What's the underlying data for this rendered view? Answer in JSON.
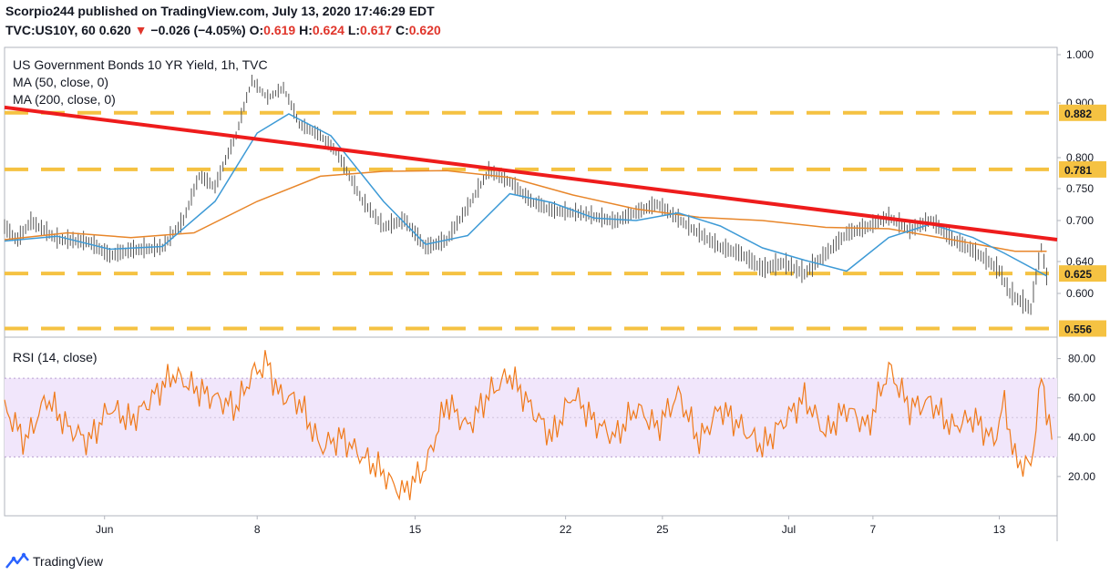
{
  "header": {
    "publisher_line": "Scorpio244 published on TradingView.com, July 13, 2020 17:46:29 EDT",
    "symbol": "TVC:US10Y, 60",
    "last": "0.620",
    "arrow": "▼",
    "change": "−0.026 (−4.05%)",
    "o_label": "O:",
    "o": "0.619",
    "h_label": "H:",
    "h": "0.624",
    "l_label": "L:",
    "l": "0.617",
    "c_label": "C:",
    "c": "0.620"
  },
  "legend": {
    "title": "US Government Bonds 10 YR Yield, 1h, TVC",
    "ma50": "MA (50, close, 0)",
    "ma200": "MA (200, close, 0)",
    "rsi": "RSI (14, close)"
  },
  "brand": "TradingView",
  "colors": {
    "trendline": "#ee1c1c",
    "levels": "#f5c242",
    "ma50": "#3d9ad6",
    "ma200": "#e8862a",
    "rsi": "#f07a1a",
    "rsi_band": "#f1e6fb",
    "price_bars": "#555555"
  },
  "chart_data": [
    {
      "type": "line",
      "title": "US Government Bonds 10 YR Yield, 1h, TVC",
      "y_ticks": [
        "1.000",
        "0.900",
        "0.800",
        "0.750",
        "0.700",
        "0.640",
        "0.600"
      ],
      "level_labels": [
        "0.882",
        "0.781",
        "0.625",
        "0.556"
      ],
      "levels": [
        0.882,
        0.781,
        0.625,
        0.556
      ],
      "x_ticks": [
        "Jun",
        "8",
        "15",
        "22",
        "25",
        "Jul",
        "7",
        "13"
      ],
      "trendline": {
        "from": [
          0,
          0.892
        ],
        "to": [
          1,
          0.672
        ]
      },
      "series": [
        {
          "name": "US10Y",
          "x": [
            0,
            0.012,
            0.025,
            0.05,
            0.08,
            0.1,
            0.12,
            0.15,
            0.17,
            0.185,
            0.2,
            0.22,
            0.235,
            0.25,
            0.265,
            0.28,
            0.3,
            0.315,
            0.34,
            0.36,
            0.38,
            0.4,
            0.42,
            0.44,
            0.46,
            0.48,
            0.5,
            0.52,
            0.55,
            0.58,
            0.6,
            0.62,
            0.64,
            0.66,
            0.68,
            0.7,
            0.72,
            0.74,
            0.76,
            0.78,
            0.8,
            0.82,
            0.84,
            0.86,
            0.88,
            0.9,
            0.92,
            0.935,
            0.945,
            0.955,
            0.975,
            0.985,
            0.99
          ],
          "values": [
            0.69,
            0.67,
            0.698,
            0.672,
            0.668,
            0.648,
            0.656,
            0.66,
            0.7,
            0.77,
            0.752,
            0.84,
            0.945,
            0.91,
            0.93,
            0.86,
            0.84,
            0.81,
            0.73,
            0.69,
            0.7,
            0.66,
            0.67,
            0.72,
            0.778,
            0.76,
            0.73,
            0.715,
            0.71,
            0.698,
            0.712,
            0.725,
            0.702,
            0.68,
            0.66,
            0.65,
            0.63,
            0.638,
            0.624,
            0.65,
            0.68,
            0.69,
            0.705,
            0.685,
            0.7,
            0.672,
            0.655,
            0.64,
            0.628,
            0.6,
            0.58,
            0.66,
            0.62
          ]
        },
        {
          "name": "MA (50, close, 0)",
          "x": [
            0,
            0.05,
            0.1,
            0.15,
            0.2,
            0.24,
            0.27,
            0.31,
            0.36,
            0.4,
            0.44,
            0.48,
            0.52,
            0.56,
            0.6,
            0.64,
            0.68,
            0.72,
            0.76,
            0.8,
            0.84,
            0.88,
            0.92,
            0.95,
            0.99
          ],
          "values": [
            0.67,
            0.677,
            0.658,
            0.662,
            0.73,
            0.845,
            0.88,
            0.84,
            0.73,
            0.665,
            0.678,
            0.742,
            0.728,
            0.704,
            0.7,
            0.712,
            0.692,
            0.66,
            0.642,
            0.628,
            0.675,
            0.695,
            0.675,
            0.652,
            0.622
          ]
        },
        {
          "name": "MA (200, close, 0)",
          "x": [
            0,
            0.06,
            0.12,
            0.18,
            0.24,
            0.3,
            0.36,
            0.42,
            0.48,
            0.54,
            0.6,
            0.66,
            0.72,
            0.78,
            0.84,
            0.9,
            0.96,
            0.99
          ],
          "values": [
            0.672,
            0.682,
            0.675,
            0.682,
            0.73,
            0.77,
            0.778,
            0.779,
            0.768,
            0.74,
            0.718,
            0.705,
            0.7,
            0.69,
            0.688,
            0.672,
            0.655,
            0.655
          ]
        }
      ]
    },
    {
      "type": "line",
      "title": "RSI (14, close)",
      "y_ticks": [
        "80.00",
        "60.00",
        "40.00",
        "20.00"
      ],
      "band": [
        30,
        70
      ],
      "ylim": [
        0,
        90
      ],
      "series": [
        {
          "name": "RSI (14, close)",
          "x": [
            0,
            0.02,
            0.04,
            0.06,
            0.08,
            0.1,
            0.12,
            0.14,
            0.16,
            0.18,
            0.2,
            0.22,
            0.235,
            0.25,
            0.26,
            0.28,
            0.3,
            0.32,
            0.34,
            0.36,
            0.37,
            0.38,
            0.4,
            0.42,
            0.44,
            0.46,
            0.48,
            0.5,
            0.52,
            0.54,
            0.56,
            0.58,
            0.6,
            0.62,
            0.64,
            0.66,
            0.68,
            0.7,
            0.72,
            0.74,
            0.76,
            0.78,
            0.8,
            0.82,
            0.84,
            0.86,
            0.88,
            0.9,
            0.92,
            0.94,
            0.95,
            0.96,
            0.975,
            0.985,
            0.995
          ],
          "values": [
            55,
            38,
            60,
            45,
            38,
            55,
            48,
            60,
            72,
            65,
            60,
            55,
            72,
            78,
            62,
            58,
            35,
            40,
            30,
            22,
            15,
            12,
            25,
            58,
            45,
            62,
            72,
            55,
            40,
            62,
            48,
            40,
            55,
            45,
            62,
            38,
            55,
            45,
            35,
            48,
            60,
            42,
            55,
            45,
            75,
            55,
            58,
            45,
            50,
            38,
            58,
            28,
            25,
            70,
            40
          ]
        }
      ]
    }
  ]
}
